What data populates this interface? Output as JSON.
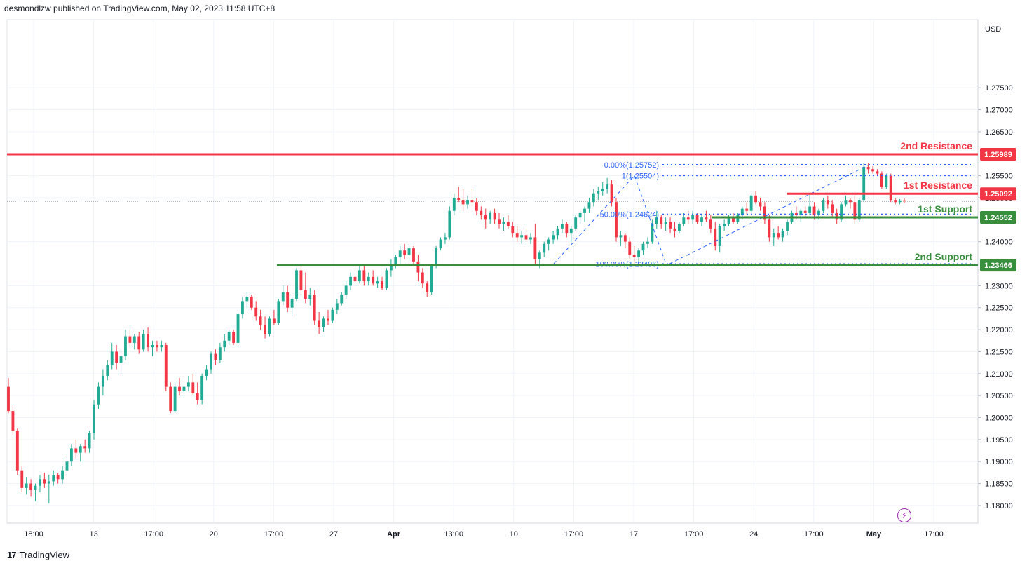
{
  "publisher": "desmondlzw published on TradingView.com, May 02, 2023 11:58 UTC+8",
  "footer": {
    "brand": "TradingView",
    "logo": "17"
  },
  "colors": {
    "up": "#22ab94",
    "down": "#f23645",
    "resistance": "#f23645",
    "support": "#388e3c",
    "fib": "#2962ff",
    "grid": "#f0f3fa",
    "axis_text": "#131722"
  },
  "icons": {
    "bolt": "lightning-icon"
  },
  "chart_data": {
    "type": "candlestick",
    "currency": "USD",
    "ylim": [
      1.176,
      1.2905
    ],
    "y_ticks": [
      "1.27500",
      "1.27000",
      "1.26500",
      "1.25500",
      "1.25000",
      "1.24000",
      "1.23000",
      "1.22500",
      "1.22000",
      "1.21500",
      "1.21000",
      "1.20500",
      "1.20000",
      "1.19500",
      "1.19000",
      "1.18500",
      "1.18000"
    ],
    "y_tick_values": [
      1.275,
      1.27,
      1.265,
      1.255,
      1.25,
      1.24,
      1.23,
      1.225,
      1.22,
      1.215,
      1.21,
      1.205,
      1.2,
      1.195,
      1.19,
      1.185,
      1.18
    ],
    "x_ticks": [
      "18:00",
      "13",
      "17:00",
      "20",
      "17:00",
      "27",
      "Apr",
      "13:00",
      "10",
      "17:00",
      "17",
      "17:00",
      "24",
      "17:00",
      "May",
      "17:00"
    ],
    "x_tick_bold": [
      false,
      false,
      false,
      false,
      false,
      false,
      true,
      false,
      false,
      false,
      false,
      false,
      false,
      false,
      true,
      false
    ],
    "levels": [
      {
        "label": "2nd Resistance",
        "value": 1.25989,
        "price_label": "1.25989",
        "kind": "resistance"
      },
      {
        "label": "1st Resistance",
        "value": 1.25092,
        "price_label": "1.25092",
        "kind": "resistance"
      },
      {
        "label": "1st Support",
        "value": 1.24552,
        "price_label": "1.24552",
        "kind": "support"
      },
      {
        "label": "2nd Support",
        "value": 1.23466,
        "price_label": "1.23466",
        "kind": "support"
      }
    ],
    "fib_labels": [
      {
        "text": "0.00%(1.25752)",
        "value": 1.25752
      },
      {
        "text": "1(1.25504)",
        "value": 1.25504
      },
      {
        "text": "50.00%(1.24624)",
        "value": 1.24624
      },
      {
        "text": "100.00%(1.23496)",
        "value": 1.23496
      }
    ],
    "current_price": 1.2492,
    "candles": [
      [
        1.207,
        1.209,
        1.201,
        1.2015
      ],
      [
        1.2015,
        1.203,
        1.196,
        1.197
      ],
      [
        1.197,
        1.1975,
        1.187,
        1.188
      ],
      [
        1.188,
        1.189,
        1.183,
        1.184
      ],
      [
        1.184,
        1.1865,
        1.1825,
        1.185
      ],
      [
        1.185,
        1.186,
        1.182,
        1.1835
      ],
      [
        1.1835,
        1.185,
        1.181,
        1.1845
      ],
      [
        1.1845,
        1.187,
        1.183,
        1.186
      ],
      [
        1.186,
        1.1875,
        1.184,
        1.185
      ],
      [
        1.185,
        1.187,
        1.1805,
        1.1855
      ],
      [
        1.1855,
        1.188,
        1.1845,
        1.187
      ],
      [
        1.187,
        1.1875,
        1.185,
        1.186
      ],
      [
        1.186,
        1.189,
        1.185,
        1.188
      ],
      [
        1.188,
        1.191,
        1.187,
        1.19
      ],
      [
        1.19,
        1.194,
        1.189,
        1.193
      ],
      [
        1.193,
        1.195,
        1.1905,
        1.192
      ],
      [
        1.192,
        1.194,
        1.19,
        1.1935
      ],
      [
        1.1935,
        1.195,
        1.192,
        1.193
      ],
      [
        1.193,
        1.197,
        1.192,
        1.1965
      ],
      [
        1.1965,
        1.204,
        1.195,
        1.203
      ],
      [
        1.203,
        1.208,
        1.202,
        1.207
      ],
      [
        1.207,
        1.211,
        1.205,
        1.2095
      ],
      [
        1.2095,
        1.213,
        1.2085,
        1.212
      ],
      [
        1.212,
        1.217,
        1.211,
        1.215
      ],
      [
        1.215,
        1.2165,
        1.211,
        1.2125
      ],
      [
        1.2125,
        1.215,
        1.21,
        1.214
      ],
      [
        1.214,
        1.22,
        1.213,
        1.2185
      ],
      [
        1.2185,
        1.22,
        1.216,
        1.217
      ],
      [
        1.217,
        1.219,
        1.2155,
        1.2185
      ],
      [
        1.2185,
        1.2195,
        1.2145,
        1.2155
      ],
      [
        1.2155,
        1.22,
        1.215,
        1.219
      ],
      [
        1.219,
        1.2205,
        1.215,
        1.216
      ],
      [
        1.216,
        1.2175,
        1.214,
        1.2165
      ],
      [
        1.2165,
        1.2175,
        1.215,
        1.216
      ],
      [
        1.216,
        1.2175,
        1.215,
        1.2165
      ],
      [
        1.2165,
        1.217,
        1.206,
        1.207
      ],
      [
        1.207,
        1.208,
        1.201,
        1.2015
      ],
      [
        1.2015,
        1.208,
        1.201,
        1.207
      ],
      [
        1.207,
        1.209,
        1.205,
        1.206
      ],
      [
        1.206,
        1.2075,
        1.2045,
        1.207
      ],
      [
        1.207,
        1.2095,
        1.206,
        1.208
      ],
      [
        1.208,
        1.21,
        1.205,
        1.2055
      ],
      [
        1.2055,
        1.208,
        1.203,
        1.204
      ],
      [
        1.204,
        1.21,
        1.203,
        1.2095
      ],
      [
        1.2095,
        1.212,
        1.2085,
        1.211
      ],
      [
        1.211,
        1.215,
        1.21,
        1.2145
      ],
      [
        1.2145,
        1.2155,
        1.212,
        1.213
      ],
      [
        1.213,
        1.217,
        1.2125,
        1.216
      ],
      [
        1.216,
        1.219,
        1.215,
        1.2175
      ],
      [
        1.2175,
        1.22,
        1.2165,
        1.2195
      ],
      [
        1.2195,
        1.22,
        1.2165,
        1.217
      ],
      [
        1.217,
        1.224,
        1.2165,
        1.2235
      ],
      [
        1.2235,
        1.2275,
        1.2225,
        1.2265
      ],
      [
        1.2265,
        1.2285,
        1.225,
        1.2275
      ],
      [
        1.2275,
        1.228,
        1.2245,
        1.225
      ],
      [
        1.225,
        1.2265,
        1.222,
        1.223
      ],
      [
        1.223,
        1.2245,
        1.22,
        1.221
      ],
      [
        1.221,
        1.223,
        1.218,
        1.219
      ],
      [
        1.219,
        1.223,
        1.2185,
        1.2225
      ],
      [
        1.2225,
        1.2245,
        1.221,
        1.2215
      ],
      [
        1.2215,
        1.227,
        1.221,
        1.2265
      ],
      [
        1.2265,
        1.23,
        1.2255,
        1.2285
      ],
      [
        1.2285,
        1.23,
        1.224,
        1.225
      ],
      [
        1.225,
        1.2275,
        1.223,
        1.227
      ],
      [
        1.227,
        1.234,
        1.2265,
        1.2335
      ],
      [
        1.2335,
        1.2345,
        1.228,
        1.229
      ],
      [
        1.229,
        1.233,
        1.226,
        1.227
      ],
      [
        1.227,
        1.2295,
        1.2255,
        1.228
      ],
      [
        1.228,
        1.229,
        1.221,
        1.222
      ],
      [
        1.222,
        1.224,
        1.219,
        1.2205
      ],
      [
        1.2205,
        1.223,
        1.2195,
        1.2225
      ],
      [
        1.2225,
        1.2245,
        1.221,
        1.222
      ],
      [
        1.222,
        1.225,
        1.2215,
        1.2245
      ],
      [
        1.2245,
        1.227,
        1.2235,
        1.226
      ],
      [
        1.226,
        1.2285,
        1.2255,
        1.228
      ],
      [
        1.228,
        1.231,
        1.227,
        1.23
      ],
      [
        1.23,
        1.233,
        1.229,
        1.232
      ],
      [
        1.232,
        1.234,
        1.23,
        1.231
      ],
      [
        1.231,
        1.2345,
        1.2305,
        1.2335
      ],
      [
        1.2335,
        1.2345,
        1.23,
        1.231
      ],
      [
        1.231,
        1.233,
        1.23,
        1.232
      ],
      [
        1.232,
        1.2335,
        1.23,
        1.2305
      ],
      [
        1.2305,
        1.232,
        1.2295,
        1.231
      ],
      [
        1.231,
        1.232,
        1.229,
        1.2295
      ],
      [
        1.2295,
        1.234,
        1.229,
        1.2335
      ],
      [
        1.2335,
        1.236,
        1.232,
        1.235
      ],
      [
        1.235,
        1.237,
        1.234,
        1.2365
      ],
      [
        1.2365,
        1.239,
        1.235,
        1.238
      ],
      [
        1.238,
        1.2395,
        1.236,
        1.237
      ],
      [
        1.237,
        1.2395,
        1.236,
        1.2385
      ],
      [
        1.2385,
        1.239,
        1.2345,
        1.2355
      ],
      [
        1.2355,
        1.237,
        1.231,
        1.233
      ],
      [
        1.233,
        1.234,
        1.2295,
        1.2305
      ],
      [
        1.2305,
        1.231,
        1.2275,
        1.2285
      ],
      [
        1.2285,
        1.235,
        1.228,
        1.2345
      ],
      [
        1.2345,
        1.239,
        1.234,
        1.2385
      ],
      [
        1.2385,
        1.241,
        1.238,
        1.2405
      ],
      [
        1.2405,
        1.242,
        1.2395,
        1.241
      ],
      [
        1.241,
        1.248,
        1.2405,
        1.247
      ],
      [
        1.247,
        1.251,
        1.246,
        1.25
      ],
      [
        1.25,
        1.2525,
        1.249,
        1.2495
      ],
      [
        1.2495,
        1.252,
        1.247,
        1.2485
      ],
      [
        1.2485,
        1.2505,
        1.2475,
        1.2495
      ],
      [
        1.2495,
        1.252,
        1.248,
        1.249
      ],
      [
        1.249,
        1.25,
        1.246,
        1.247
      ],
      [
        1.247,
        1.248,
        1.245,
        1.246
      ],
      [
        1.246,
        1.2475,
        1.243,
        1.245
      ],
      [
        1.245,
        1.247,
        1.244,
        1.2465
      ],
      [
        1.2465,
        1.2475,
        1.244,
        1.245
      ],
      [
        1.245,
        1.2465,
        1.243,
        1.244
      ],
      [
        1.244,
        1.2455,
        1.2425,
        1.2445
      ],
      [
        1.2445,
        1.246,
        1.243,
        1.2435
      ],
      [
        1.2435,
        1.2445,
        1.241,
        1.242
      ],
      [
        1.242,
        1.2435,
        1.24,
        1.241
      ],
      [
        1.241,
        1.2425,
        1.2395,
        1.2415
      ],
      [
        1.2415,
        1.243,
        1.24,
        1.2405
      ],
      [
        1.2405,
        1.242,
        1.2395,
        1.241
      ],
      [
        1.241,
        1.244,
        1.235,
        1.236
      ],
      [
        1.236,
        1.238,
        1.234,
        1.2375
      ],
      [
        1.2375,
        1.24,
        1.2365,
        1.2395
      ],
      [
        1.2395,
        1.241,
        1.238,
        1.2405
      ],
      [
        1.2405,
        1.2425,
        1.2395,
        1.2415
      ],
      [
        1.2415,
        1.2435,
        1.2405,
        1.243
      ],
      [
        1.243,
        1.245,
        1.242,
        1.244
      ],
      [
        1.244,
        1.2445,
        1.241,
        1.242
      ],
      [
        1.242,
        1.2435,
        1.24,
        1.243
      ],
      [
        1.243,
        1.246,
        1.2425,
        1.2455
      ],
      [
        1.2455,
        1.247,
        1.244,
        1.2465
      ],
      [
        1.2465,
        1.248,
        1.2445,
        1.2475
      ],
      [
        1.2475,
        1.25,
        1.2465,
        1.249
      ],
      [
        1.249,
        1.252,
        1.248,
        1.251
      ],
      [
        1.251,
        1.2525,
        1.2495,
        1.2515
      ],
      [
        1.2515,
        1.2535,
        1.2505,
        1.252
      ],
      [
        1.252,
        1.2545,
        1.251,
        1.253
      ],
      [
        1.253,
        1.254,
        1.248,
        1.249
      ],
      [
        1.249,
        1.25,
        1.24,
        1.241
      ],
      [
        1.241,
        1.2425,
        1.239,
        1.2415
      ],
      [
        1.2415,
        1.242,
        1.2385,
        1.24
      ],
      [
        1.24,
        1.241,
        1.236,
        1.237
      ],
      [
        1.237,
        1.239,
        1.235,
        1.2365
      ],
      [
        1.2365,
        1.2385,
        1.2355,
        1.238
      ],
      [
        1.238,
        1.24,
        1.237,
        1.2395
      ],
      [
        1.2395,
        1.241,
        1.2385,
        1.24
      ],
      [
        1.24,
        1.245,
        1.2395,
        1.244
      ],
      [
        1.244,
        1.247,
        1.243,
        1.2455
      ],
      [
        1.2455,
        1.246,
        1.243,
        1.244
      ],
      [
        1.244,
        1.2455,
        1.2425,
        1.2445
      ],
      [
        1.2445,
        1.2455,
        1.242,
        1.243
      ],
      [
        1.243,
        1.2445,
        1.241,
        1.2425
      ],
      [
        1.2425,
        1.2445,
        1.242,
        1.244
      ],
      [
        1.244,
        1.2465,
        1.2435,
        1.2455
      ],
      [
        1.2455,
        1.247,
        1.244,
        1.245
      ],
      [
        1.245,
        1.247,
        1.244,
        1.246
      ],
      [
        1.246,
        1.2465,
        1.244,
        1.2445
      ],
      [
        1.2445,
        1.246,
        1.2435,
        1.2455
      ],
      [
        1.2455,
        1.247,
        1.2445,
        1.245
      ],
      [
        1.245,
        1.246,
        1.242,
        1.243
      ],
      [
        1.243,
        1.2445,
        1.238,
        1.239
      ],
      [
        1.239,
        1.244,
        1.2375,
        1.2435
      ],
      [
        1.2435,
        1.245,
        1.2425,
        1.244
      ],
      [
        1.244,
        1.246,
        1.2435,
        1.2455
      ],
      [
        1.2455,
        1.2465,
        1.244,
        1.2445
      ],
      [
        1.2445,
        1.2465,
        1.244,
        1.246
      ],
      [
        1.246,
        1.248,
        1.245,
        1.2475
      ],
      [
        1.2475,
        1.249,
        1.246,
        1.247
      ],
      [
        1.247,
        1.251,
        1.2465,
        1.2505
      ],
      [
        1.2505,
        1.2515,
        1.2485,
        1.249
      ],
      [
        1.249,
        1.25,
        1.247,
        1.248
      ],
      [
        1.248,
        1.249,
        1.244,
        1.245
      ],
      [
        1.245,
        1.246,
        1.24,
        1.241
      ],
      [
        1.241,
        1.243,
        1.239,
        1.242
      ],
      [
        1.242,
        1.2435,
        1.2405,
        1.241
      ],
      [
        1.241,
        1.243,
        1.24,
        1.2425
      ],
      [
        1.2425,
        1.245,
        1.2415,
        1.2445
      ],
      [
        1.2445,
        1.247,
        1.244,
        1.2465
      ],
      [
        1.2465,
        1.248,
        1.245,
        1.246
      ],
      [
        1.246,
        1.2475,
        1.2445,
        1.247
      ],
      [
        1.247,
        1.248,
        1.2455,
        1.2465
      ],
      [
        1.2465,
        1.251,
        1.246,
        1.248
      ],
      [
        1.248,
        1.249,
        1.245,
        1.246
      ],
      [
        1.246,
        1.2475,
        1.245,
        1.247
      ],
      [
        1.247,
        1.25,
        1.2465,
        1.2495
      ],
      [
        1.2495,
        1.2505,
        1.2475,
        1.2485
      ],
      [
        1.2485,
        1.2495,
        1.2455,
        1.2465
      ],
      [
        1.2465,
        1.2475,
        1.244,
        1.245
      ],
      [
        1.245,
        1.249,
        1.2445,
        1.2485
      ],
      [
        1.2485,
        1.2505,
        1.248,
        1.2495
      ],
      [
        1.2495,
        1.25,
        1.2475,
        1.249
      ],
      [
        1.249,
        1.2505,
        1.244,
        1.245
      ],
      [
        1.245,
        1.25,
        1.2445,
        1.2495
      ],
      [
        1.2495,
        1.258,
        1.249,
        1.257
      ],
      [
        1.257,
        1.2578,
        1.2555,
        1.2565
      ],
      [
        1.2565,
        1.2572,
        1.2555,
        1.256
      ],
      [
        1.256,
        1.2565,
        1.255,
        1.2555
      ],
      [
        1.2555,
        1.256,
        1.252,
        1.2525
      ],
      [
        1.2525,
        1.2555,
        1.252,
        1.255
      ],
      [
        1.255,
        1.2555,
        1.249,
        1.2495
      ],
      [
        1.2495,
        1.25,
        1.2485,
        1.249
      ],
      [
        1.249,
        1.2497,
        1.2485,
        1.2494
      ],
      [
        1.2494,
        1.2498,
        1.2488,
        1.2492
      ]
    ]
  }
}
